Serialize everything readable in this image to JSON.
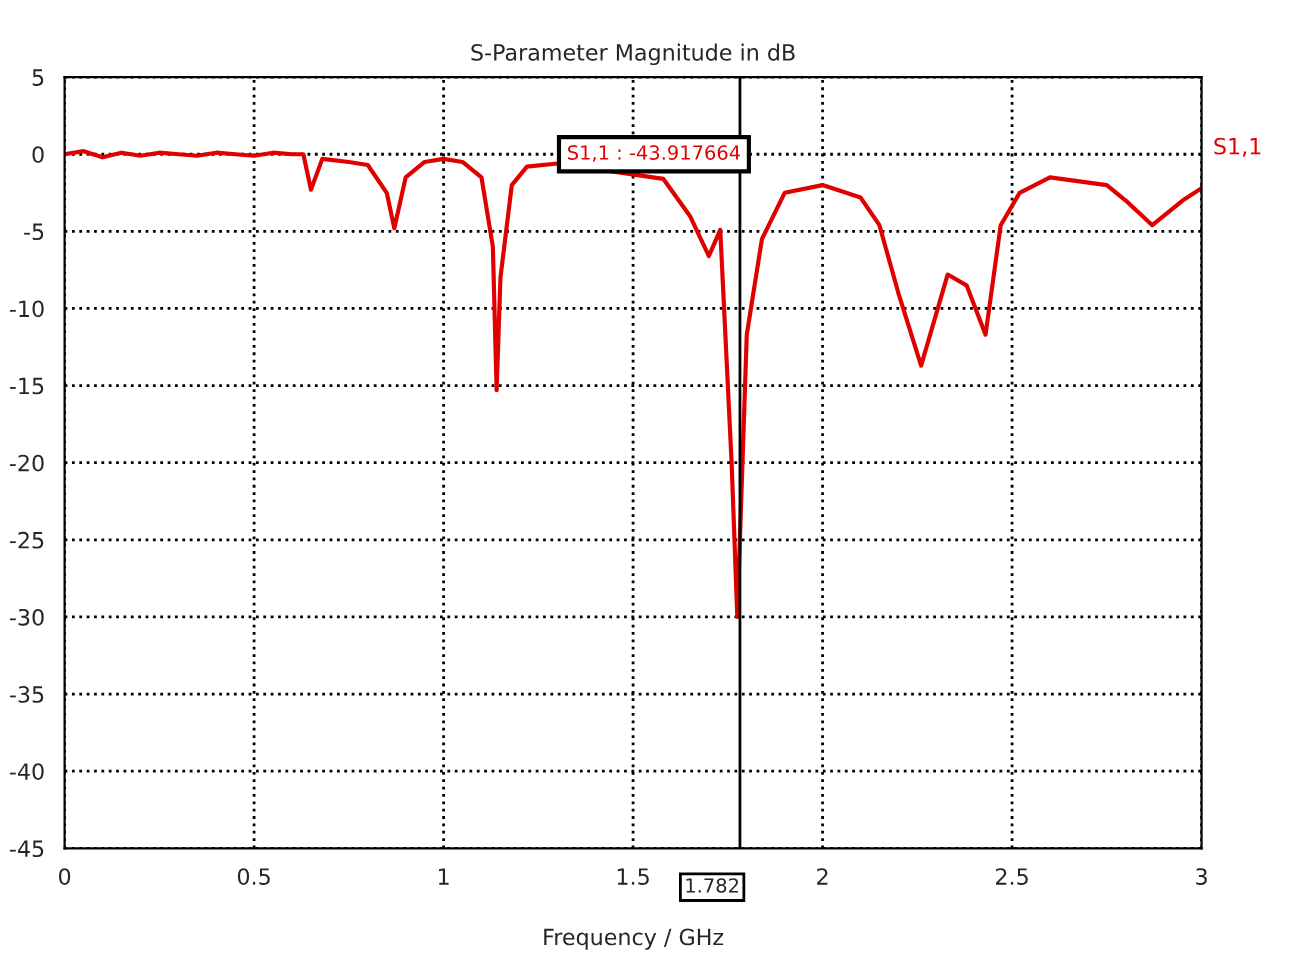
{
  "chart_data": {
    "type": "line",
    "title": "S-Parameter Magnitude in dB",
    "xlabel": "Frequency / GHz",
    "xlim": [
      0,
      3
    ],
    "xticks": [
      0,
      0.5,
      1,
      1.5,
      2,
      2.5,
      3
    ],
    "ylim": [
      -45,
      5
    ],
    "yticks": [
      5,
      0,
      -5,
      -10,
      -15,
      -20,
      -25,
      -30,
      -35,
      -40,
      -45
    ],
    "grid": true,
    "line_style": "solid",
    "marker": "none",
    "series": [
      {
        "name": "S1,1",
        "color": "#e00000",
        "x": [
          0,
          0.05,
          0.1,
          0.15,
          0.2,
          0.25,
          0.3,
          0.35,
          0.4,
          0.45,
          0.5,
          0.55,
          0.6,
          0.63,
          0.65,
          0.68,
          0.75,
          0.8,
          0.85,
          0.87,
          0.9,
          0.95,
          1.0,
          1.05,
          1.1,
          1.13,
          1.14,
          1.15,
          1.18,
          1.22,
          1.3,
          1.45,
          1.58,
          1.65,
          1.7,
          1.73,
          1.76,
          1.775,
          1.8,
          1.84,
          1.9,
          2.0,
          2.1,
          2.15,
          2.2,
          2.26,
          2.33,
          2.38,
          2.43,
          2.47,
          2.52,
          2.6,
          2.75,
          2.8,
          2.87,
          2.95,
          3.0
        ],
        "values": [
          0,
          0.2,
          -0.2,
          0.1,
          -0.1,
          0.1,
          0,
          -0.1,
          0.1,
          0,
          -0.1,
          0.1,
          0,
          0,
          -2.3,
          -0.3,
          -0.5,
          -0.7,
          -2.5,
          -4.8,
          -1.5,
          -0.5,
          -0.3,
          -0.5,
          -1.5,
          -6,
          -15.3,
          -8,
          -2,
          -0.8,
          -0.6,
          null,
          -1.6,
          -4,
          -6.6,
          -4.9,
          -20,
          -30,
          -11.7,
          -5.5,
          -2.5,
          -2,
          -2.8,
          -4.6,
          -9,
          -13.7,
          -7.8,
          -8.5,
          -11.7,
          -4.6,
          -2.5,
          -1.5,
          -2,
          -3,
          -4.6,
          -3,
          -2.2
        ]
      }
    ],
    "ref_lines": [
      {
        "axis": "x",
        "value": 1.782,
        "label": "1.782",
        "color": "#000000",
        "line_style": "solid"
      }
    ],
    "annotations": [
      "S1,1 : -43.917664"
    ]
  }
}
